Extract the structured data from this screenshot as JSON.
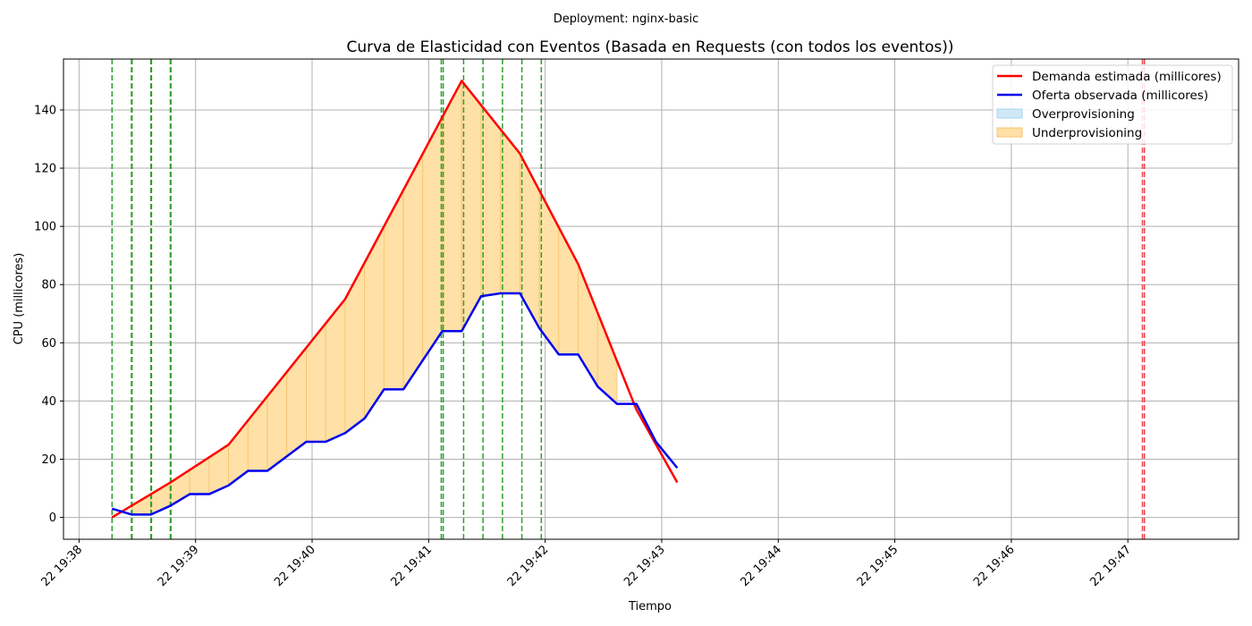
{
  "chart_data": {
    "type": "line",
    "suptitle": "Deployment: nginx-basic",
    "title": "Curva de Elasticidad con Eventos (Basada en Requests (con todos los eventos))",
    "xlabel": "Tiempo",
    "ylabel": "CPU (millicores)",
    "xlim": [
      "19:37:52",
      "19:47:57"
    ],
    "ylim": [
      -7.5,
      157.5
    ],
    "x_ticks": [
      {
        "t": "19:38:00",
        "label": "22 19:38"
      },
      {
        "t": "19:39:00",
        "label": "22 19:39"
      },
      {
        "t": "19:40:00",
        "label": "22 19:40"
      },
      {
        "t": "19:41:00",
        "label": "22 19:41"
      },
      {
        "t": "19:42:00",
        "label": "22 19:42"
      },
      {
        "t": "19:43:00",
        "label": "22 19:43"
      },
      {
        "t": "19:44:00",
        "label": "22 19:44"
      },
      {
        "t": "19:45:00",
        "label": "22 19:45"
      },
      {
        "t": "19:46:00",
        "label": "22 19:46"
      },
      {
        "t": "19:47:00",
        "label": "22 19:47"
      }
    ],
    "y_ticks": [
      0,
      20,
      40,
      60,
      80,
      100,
      120,
      140
    ],
    "grid": true,
    "legend_position": "top-right",
    "legend": [
      {
        "label": "Demanda estimada (millicores)",
        "kind": "line",
        "color": "#ff0000"
      },
      {
        "label": "Oferta observada (millicores)",
        "kind": "line",
        "color": "#0000ee"
      },
      {
        "label": "Overprovisioning",
        "kind": "patch",
        "color": "#cfe8f7",
        "edge": "#a8d4ef"
      },
      {
        "label": "Underprovisioning",
        "kind": "patch",
        "color": "#ffe0a6",
        "edge": "#f5c36b"
      }
    ],
    "series": [
      {
        "name": "Demanda estimada (millicores)",
        "color": "#ff0000",
        "points": [
          [
            "19:38:17",
            0
          ],
          [
            "19:38:47",
            12
          ],
          [
            "19:39:17",
            25
          ],
          [
            "19:39:47",
            50
          ],
          [
            "19:40:17",
            75
          ],
          [
            "19:41:17",
            150
          ],
          [
            "19:41:47",
            125
          ],
          [
            "19:42:17",
            87
          ],
          [
            "19:42:47",
            37
          ],
          [
            "19:43:08",
            12
          ]
        ]
      },
      {
        "name": "Oferta observada (millicores)",
        "color": "#0000ee",
        "points": [
          [
            "19:38:17",
            3
          ],
          [
            "19:38:27",
            1
          ],
          [
            "19:38:37",
            1
          ],
          [
            "19:38:47",
            4
          ],
          [
            "19:38:57",
            8
          ],
          [
            "19:39:07",
            8
          ],
          [
            "19:39:17",
            11
          ],
          [
            "19:39:27",
            16
          ],
          [
            "19:39:37",
            16
          ],
          [
            "19:39:47",
            21
          ],
          [
            "19:39:57",
            26
          ],
          [
            "19:40:07",
            26
          ],
          [
            "19:40:17",
            29
          ],
          [
            "19:40:27",
            34
          ],
          [
            "19:40:37",
            44
          ],
          [
            "19:40:47",
            44
          ],
          [
            "19:40:57",
            54
          ],
          [
            "19:41:07",
            64
          ],
          [
            "19:41:17",
            64
          ],
          [
            "19:41:27",
            76
          ],
          [
            "19:41:37",
            77
          ],
          [
            "19:41:47",
            77
          ],
          [
            "19:41:57",
            65
          ],
          [
            "19:42:07",
            56
          ],
          [
            "19:42:17",
            56
          ],
          [
            "19:42:27",
            45
          ],
          [
            "19:42:37",
            39
          ],
          [
            "19:42:47",
            39
          ],
          [
            "19:42:57",
            26
          ],
          [
            "19:43:08",
            17
          ]
        ]
      }
    ],
    "event_lines": [
      {
        "t": "19:38:17",
        "color": "#2ca02c"
      },
      {
        "t": "19:38:27",
        "color": "#2ca02c"
      },
      {
        "t": "19:38:27.3",
        "color": "#2ca02c"
      },
      {
        "t": "19:38:37",
        "color": "#2ca02c"
      },
      {
        "t": "19:38:37.3",
        "color": "#2ca02c"
      },
      {
        "t": "19:38:47",
        "color": "#2ca02c"
      },
      {
        "t": "19:38:47.3",
        "color": "#2ca02c"
      },
      {
        "t": "19:41:06.5",
        "color": "#2ca02c"
      },
      {
        "t": "19:41:07.5",
        "color": "#2ca02c"
      },
      {
        "t": "19:41:18",
        "color": "#2ca02c"
      },
      {
        "t": "19:41:28",
        "color": "#2ca02c"
      },
      {
        "t": "19:41:38",
        "color": "#2ca02c"
      },
      {
        "t": "19:41:48",
        "color": "#2ca02c"
      },
      {
        "t": "19:41:58",
        "color": "#2ca02c"
      },
      {
        "t": "19:47:07.5",
        "color": "#e8474a"
      },
      {
        "t": "19:47:08.5",
        "color": "#e8474a"
      }
    ]
  }
}
